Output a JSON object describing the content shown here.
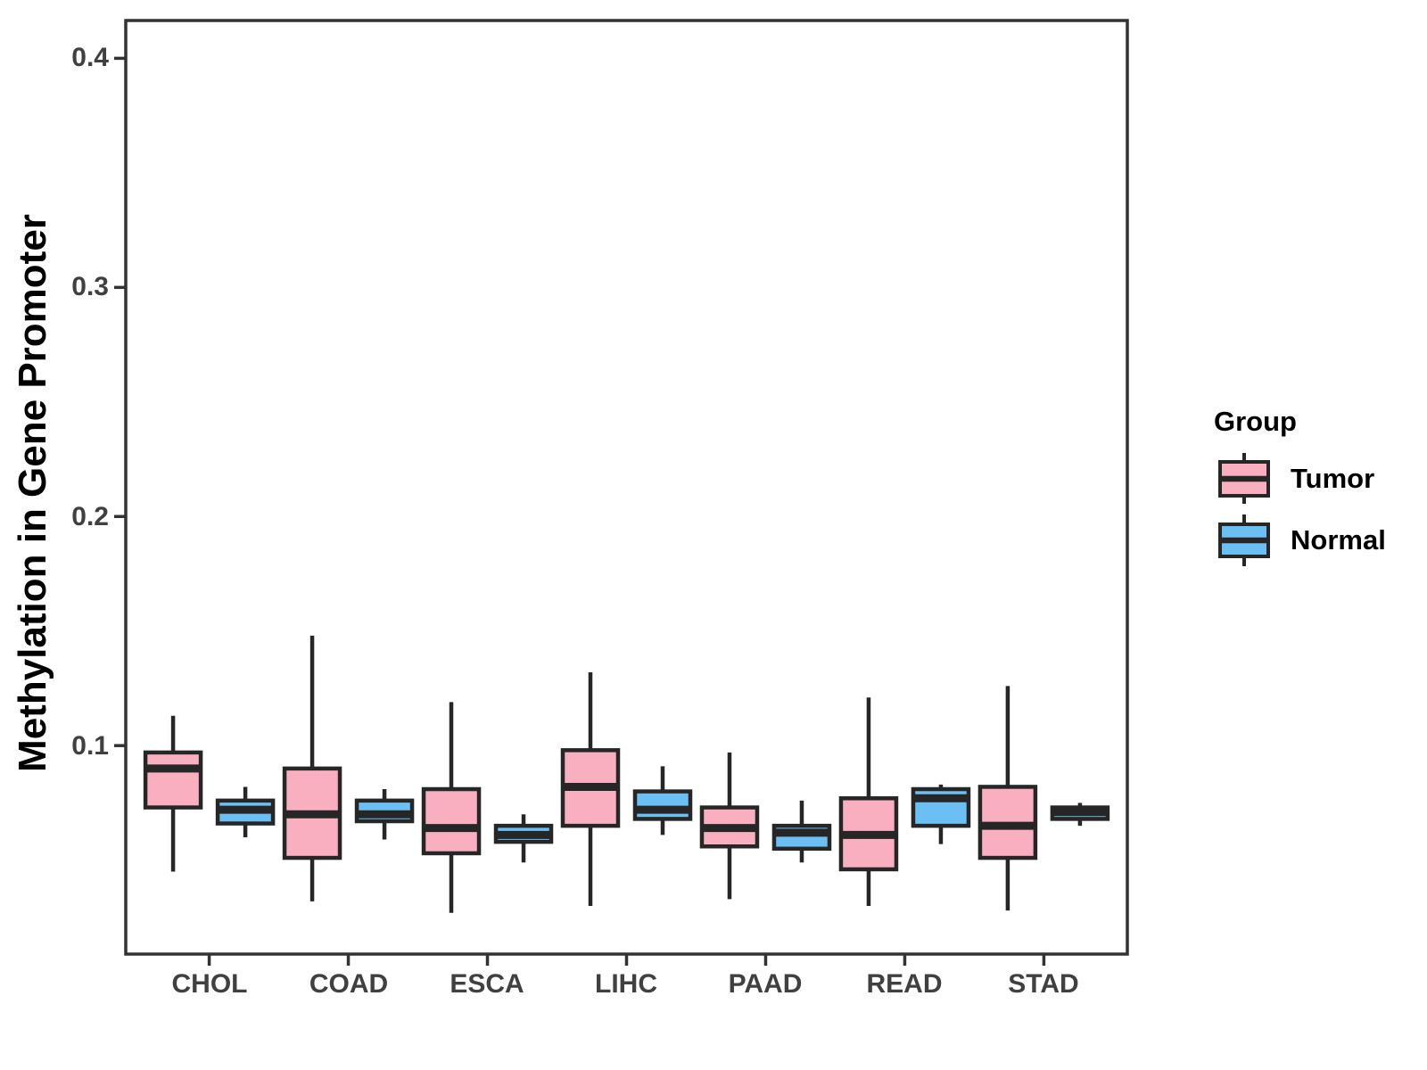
{
  "page": {
    "background": "#FFFFFF"
  },
  "chart_data": {
    "type": "boxplot",
    "orientation": "vertical",
    "title": "",
    "xlabel": "",
    "ylabel": "Methylation in Gene Promoter",
    "categories": [
      "CHOL",
      "COAD",
      "ESCA",
      "LIHC",
      "PAAD",
      "READ",
      "STAD"
    ],
    "y_ticks": [
      0.1,
      0.2,
      0.3,
      0.4
    ],
    "y_tick_labels": [
      "0.1",
      "0.2",
      "0.3",
      "0.4"
    ],
    "ylim": [
      0.009,
      0.4165
    ],
    "grid": "off",
    "panel_border": true,
    "stroke_color": "#262626",
    "axis_color": "#333333",
    "legend": {
      "title": "Group",
      "position": "right",
      "entries": [
        {
          "label": "Tumor",
          "color": "#F9AFC0"
        },
        {
          "label": "Normal",
          "color": "#6CBFF2"
        }
      ]
    },
    "series": [
      {
        "name": "Tumor",
        "color": "#F9AFC0",
        "boxes": [
          {
            "category": "CHOL",
            "whisker_low": 0.045,
            "q1": 0.073,
            "median": 0.09,
            "q3": 0.097,
            "whisker_high": 0.113
          },
          {
            "category": "COAD",
            "whisker_low": 0.032,
            "q1": 0.051,
            "median": 0.07,
            "q3": 0.09,
            "whisker_high": 0.148
          },
          {
            "category": "ESCA",
            "whisker_low": 0.027,
            "q1": 0.053,
            "median": 0.064,
            "q3": 0.081,
            "whisker_high": 0.119
          },
          {
            "category": "LIHC",
            "whisker_low": 0.03,
            "q1": 0.065,
            "median": 0.082,
            "q3": 0.098,
            "whisker_high": 0.132
          },
          {
            "category": "PAAD",
            "whisker_low": 0.033,
            "q1": 0.056,
            "median": 0.064,
            "q3": 0.073,
            "whisker_high": 0.097
          },
          {
            "category": "READ",
            "whisker_low": 0.03,
            "q1": 0.046,
            "median": 0.061,
            "q3": 0.077,
            "whisker_high": 0.121
          },
          {
            "category": "STAD",
            "whisker_low": 0.028,
            "q1": 0.051,
            "median": 0.065,
            "q3": 0.082,
            "whisker_high": 0.126
          }
        ]
      },
      {
        "name": "Normal",
        "color": "#6CBFF2",
        "boxes": [
          {
            "category": "CHOL",
            "whisker_low": 0.06,
            "q1": 0.066,
            "median": 0.072,
            "q3": 0.076,
            "whisker_high": 0.082
          },
          {
            "category": "COAD",
            "whisker_low": 0.059,
            "q1": 0.067,
            "median": 0.07,
            "q3": 0.076,
            "whisker_high": 0.081
          },
          {
            "category": "ESCA",
            "whisker_low": 0.049,
            "q1": 0.058,
            "median": 0.061,
            "q3": 0.065,
            "whisker_high": 0.07
          },
          {
            "category": "LIHC",
            "whisker_low": 0.061,
            "q1": 0.068,
            "median": 0.072,
            "q3": 0.08,
            "whisker_high": 0.091
          },
          {
            "category": "PAAD",
            "whisker_low": 0.049,
            "q1": 0.055,
            "median": 0.062,
            "q3": 0.065,
            "whisker_high": 0.076
          },
          {
            "category": "READ",
            "whisker_low": 0.057,
            "q1": 0.065,
            "median": 0.077,
            "q3": 0.081,
            "whisker_high": 0.083
          },
          {
            "category": "STAD",
            "whisker_low": 0.065,
            "q1": 0.068,
            "median": 0.071,
            "q3": 0.073,
            "whisker_high": 0.075
          }
        ]
      }
    ]
  }
}
